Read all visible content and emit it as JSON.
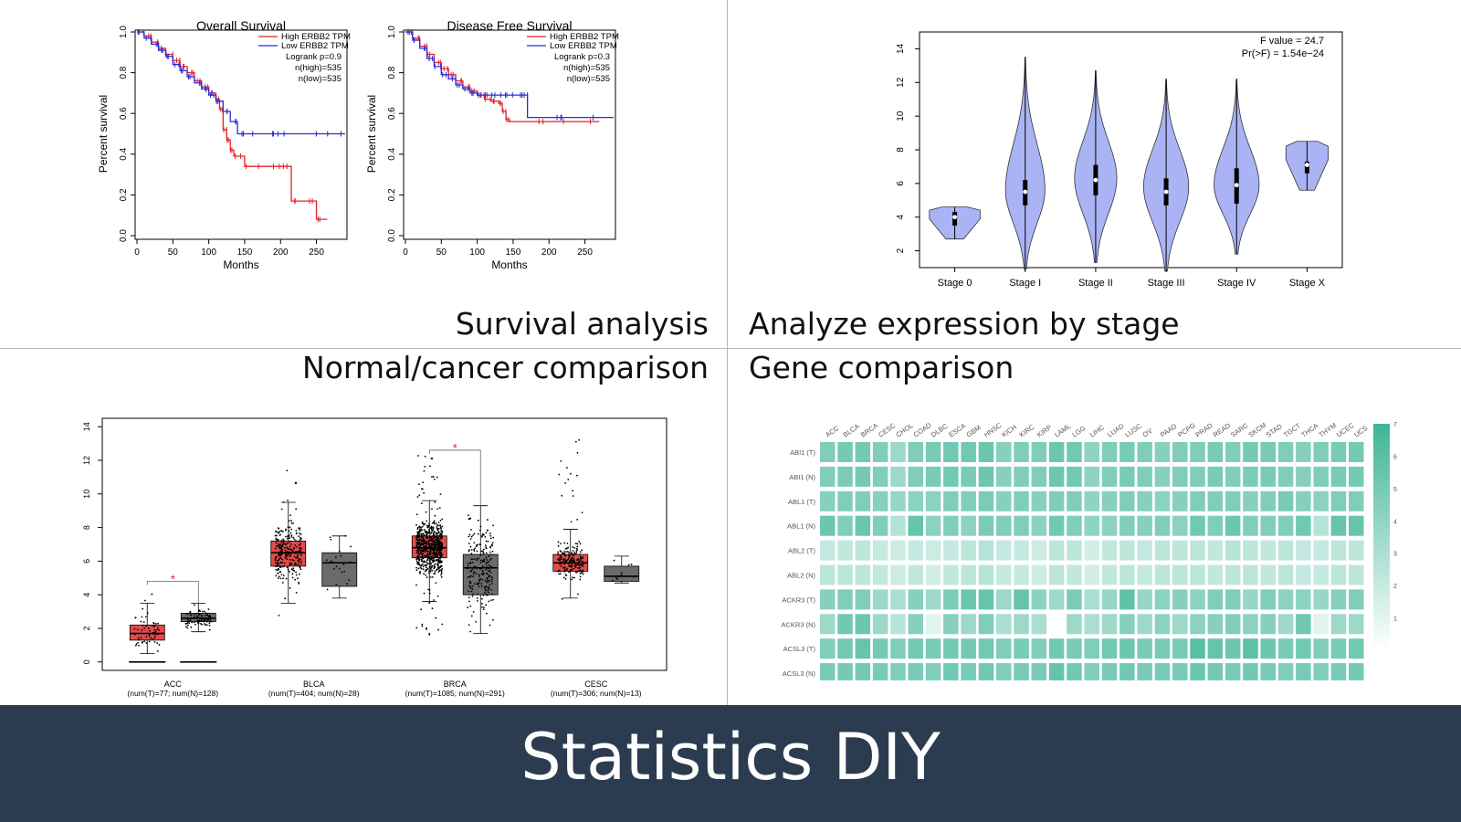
{
  "footer": {
    "title": "Statistics DIY"
  },
  "captions": {
    "survival": "Survival analysis",
    "stage": "Analyze expression by stage",
    "normal_cancer": "Normal/cancer comparison",
    "gene": "Gene comparison"
  },
  "colors": {
    "high": "#e8202a",
    "low": "#2b2bd8",
    "violin": "#aab4f4",
    "tumor": "#e24b4b",
    "normal": "#6b6b6b",
    "heat": "#3eb596",
    "footer": "#2c3c50"
  },
  "chart_data": [
    {
      "type": "line",
      "title": "Overall Survival",
      "xlabel": "Months",
      "ylabel": "Percent survival",
      "xlim": [
        0,
        290
      ],
      "ylim": [
        0,
        1
      ],
      "xticks": [
        "0",
        "50",
        "100",
        "150",
        "200",
        "250"
      ],
      "yticks": [
        "0.0",
        "0.2",
        "0.4",
        "0.6",
        "0.8",
        "1.0"
      ],
      "legend": [
        "High ERBB2 TPM",
        "Low ERBB2 TPM"
      ],
      "stats": [
        "Logrank p=0.9",
        "n(high)=535",
        "n(low)=535"
      ],
      "series": [
        {
          "name": "High ERBB2 TPM",
          "x": [
            0,
            10,
            20,
            30,
            40,
            50,
            60,
            70,
            80,
            90,
            100,
            110,
            115,
            120,
            125,
            130,
            135,
            150,
            175,
            200,
            215,
            230,
            250,
            265
          ],
          "values": [
            1.0,
            0.98,
            0.95,
            0.92,
            0.89,
            0.86,
            0.83,
            0.8,
            0.76,
            0.73,
            0.7,
            0.67,
            0.62,
            0.52,
            0.47,
            0.42,
            0.39,
            0.34,
            0.34,
            0.34,
            0.17,
            0.17,
            0.08,
            0.08
          ]
        },
        {
          "name": "Low ERBB2 TPM",
          "x": [
            0,
            10,
            20,
            30,
            40,
            50,
            60,
            70,
            80,
            90,
            100,
            110,
            120,
            130,
            140,
            150,
            200,
            290
          ],
          "values": [
            1.0,
            0.97,
            0.94,
            0.91,
            0.88,
            0.84,
            0.81,
            0.78,
            0.75,
            0.72,
            0.69,
            0.66,
            0.61,
            0.56,
            0.5,
            0.5,
            0.5,
            0.5
          ]
        }
      ]
    },
    {
      "type": "line",
      "title": "Disease Free Survival",
      "xlabel": "Months",
      "ylabel": "Percent survival",
      "xlim": [
        0,
        290
      ],
      "ylim": [
        0,
        1
      ],
      "xticks": [
        "0",
        "50",
        "100",
        "150",
        "200",
        "250"
      ],
      "yticks": [
        "0.0",
        "0.2",
        "0.4",
        "0.6",
        "0.8",
        "1.0"
      ],
      "legend": [
        "High ERBB2 TPM",
        "Low ERBB2 TPM"
      ],
      "stats": [
        "Logrank p=0.3",
        "n(high)=535",
        "n(low)=535"
      ],
      "series": [
        {
          "name": "High ERBB2 TPM",
          "x": [
            0,
            10,
            20,
            30,
            40,
            50,
            60,
            70,
            80,
            90,
            100,
            110,
            120,
            130,
            135,
            140,
            145,
            270
          ],
          "values": [
            1.0,
            0.97,
            0.93,
            0.89,
            0.85,
            0.82,
            0.79,
            0.76,
            0.73,
            0.71,
            0.69,
            0.67,
            0.66,
            0.65,
            0.61,
            0.57,
            0.56,
            0.56
          ]
        },
        {
          "name": "Low ERBB2 TPM",
          "x": [
            0,
            10,
            20,
            30,
            40,
            50,
            60,
            70,
            80,
            90,
            100,
            110,
            120,
            130,
            140,
            150,
            165,
            170,
            290
          ],
          "values": [
            1.0,
            0.96,
            0.92,
            0.87,
            0.83,
            0.79,
            0.77,
            0.74,
            0.72,
            0.7,
            0.69,
            0.69,
            0.69,
            0.69,
            0.69,
            0.69,
            0.69,
            0.58,
            0.58
          ]
        }
      ]
    },
    {
      "type": "violin",
      "categories": [
        "Stage 0",
        "Stage I",
        "Stage II",
        "Stage III",
        "Stage IV",
        "Stage X"
      ],
      "ylim": [
        1,
        15
      ],
      "yticks": [
        "2",
        "4",
        "6",
        "8",
        "10",
        "12",
        "14"
      ],
      "annotation": [
        "F value = 24.7",
        "Pr(>F) = 1.54e−24"
      ],
      "min": [
        2.7,
        0.9,
        1.3,
        0.8,
        1.8,
        5.6
      ],
      "max": [
        4.6,
        13.5,
        12.7,
        12.2,
        12.2,
        8.5
      ],
      "mode": [
        4.3,
        5.6,
        6.3,
        5.8,
        5.9,
        7.0
      ],
      "width": [
        0.36,
        0.28,
        0.3,
        0.32,
        0.32,
        0.3
      ],
      "median": [
        4.0,
        5.5,
        6.2,
        5.5,
        5.9,
        7.1
      ],
      "q1": [
        3.5,
        4.7,
        5.3,
        4.7,
        4.8,
        6.6
      ],
      "q3": [
        4.3,
        6.2,
        7.1,
        6.3,
        6.9,
        7.3
      ]
    },
    {
      "type": "box",
      "categories": [
        "ACC",
        "BLCA",
        "BRCA",
        "CESC"
      ],
      "sublabels": [
        "(num(T)=77; num(N)=128)",
        "(num(T)=404; num(N)=28)",
        "(num(T)=1085; num(N)=291)",
        "(num(T)=306; num(N)=13)"
      ],
      "ylim": [
        -0.5,
        14.5
      ],
      "yticks": [
        "0",
        "2",
        "4",
        "6",
        "8",
        "10",
        "12",
        "14"
      ],
      "significance_marker": "*",
      "significant": [
        true,
        false,
        true,
        false
      ],
      "tumor": {
        "q1": [
          1.3,
          5.7,
          6.2,
          5.4
        ],
        "median": [
          1.7,
          6.5,
          6.8,
          5.9
        ],
        "q3": [
          2.2,
          7.2,
          7.5,
          6.4
        ],
        "low": [
          0.5,
          3.5,
          3.6,
          3.8
        ],
        "high": [
          3.5,
          9.5,
          9.6,
          7.9
        ],
        "min": [
          0.4,
          2.7,
          1.6,
          3.2
        ],
        "max": [
          4.5,
          12.1,
          12.3,
          13.5
        ]
      },
      "normal": {
        "q1": [
          2.4,
          4.5,
          4.0,
          4.8
        ],
        "median": [
          2.6,
          5.9,
          5.6,
          5.1
        ],
        "q3": [
          2.9,
          6.5,
          6.4,
          5.7
        ],
        "low": [
          1.8,
          3.8,
          1.7,
          4.7
        ],
        "high": [
          3.5,
          7.5,
          9.3,
          6.3
        ],
        "min": [
          1.6,
          3.8,
          1.7,
          4.7
        ],
        "max": [
          3.6,
          7.5,
          9.3,
          6.3
        ]
      }
    },
    {
      "type": "heatmap",
      "x": [
        "ACC",
        "BLCA",
        "BRCA",
        "CESC",
        "CHOL",
        "COAD",
        "DLBC",
        "ESCA",
        "GBM",
        "HNSC",
        "KICH",
        "KIRC",
        "KIRP",
        "LAML",
        "LGG",
        "LIHC",
        "LUAD",
        "LUSC",
        "OV",
        "PAAD",
        "PCPG",
        "PRAD",
        "READ",
        "SARC",
        "SKCM",
        "STAD",
        "TGCT",
        "THCA",
        "THYM",
        "UCEC",
        "UCS"
      ],
      "y": [
        "ABI1 (T)",
        "ABI1 (N)",
        "ABL1 (T)",
        "ABL1 (N)",
        "ABL2 (T)",
        "ABL2 (N)",
        "ACKR3 (T)",
        "ACKR3 (N)",
        "ACSL3 (T)",
        "ACSL3 (N)"
      ],
      "scale_ticks": [
        "1",
        "2",
        "3",
        "4",
        "5",
        "6",
        "7"
      ],
      "zlim": [
        0,
        7
      ],
      "values": [
        [
          4.6,
          5.0,
          5.0,
          4.6,
          3.6,
          4.6,
          4.9,
          5.1,
          5.1,
          5.3,
          4.4,
          4.6,
          4.6,
          5.3,
          5.1,
          4.1,
          4.6,
          4.9,
          4.6,
          4.4,
          4.6,
          4.6,
          4.9,
          4.6,
          5.0,
          4.9,
          4.6,
          4.4,
          4.6,
          4.9,
          5.0
        ],
        [
          4.6,
          4.8,
          5.0,
          4.6,
          3.6,
          4.6,
          4.9,
          5.1,
          4.9,
          5.3,
          4.4,
          4.6,
          4.6,
          5.3,
          5.1,
          4.1,
          4.6,
          4.9,
          4.6,
          4.4,
          4.6,
          4.6,
          4.9,
          4.6,
          4.8,
          4.9,
          4.6,
          4.4,
          4.6,
          4.9,
          5.0
        ],
        [
          4.4,
          4.6,
          4.6,
          4.4,
          3.8,
          4.2,
          4.2,
          4.6,
          4.6,
          4.8,
          4.4,
          4.6,
          4.4,
          4.6,
          4.6,
          4.1,
          4.4,
          4.6,
          4.4,
          4.2,
          4.4,
          4.6,
          4.6,
          4.6,
          4.4,
          4.6,
          4.9,
          4.4,
          4.2,
          4.6,
          4.6
        ],
        [
          5.3,
          4.6,
          5.4,
          4.6,
          2.7,
          5.6,
          4.2,
          4.6,
          4.2,
          4.8,
          4.6,
          4.6,
          4.2,
          5.1,
          4.6,
          4.1,
          4.2,
          4.6,
          4.4,
          4.6,
          4.2,
          5.1,
          4.6,
          5.3,
          4.6,
          4.6,
          4.6,
          5.1,
          2.6,
          5.6,
          5.5
        ],
        [
          2.1,
          2.2,
          2.4,
          2.1,
          1.8,
          2.1,
          1.9,
          2.1,
          2.4,
          2.6,
          2.1,
          2.1,
          1.8,
          2.4,
          2.4,
          1.6,
          2.2,
          2.4,
          2.1,
          2.4,
          2.4,
          2.4,
          2.2,
          2.6,
          2.4,
          2.2,
          2.4,
          2.1,
          2.1,
          2.4,
          2.4
        ],
        [
          2.4,
          2.4,
          2.4,
          2.2,
          1.8,
          2.2,
          1.6,
          2.2,
          2.4,
          2.6,
          2.1,
          2.1,
          1.8,
          2.4,
          2.2,
          1.6,
          2.2,
          2.4,
          2.1,
          2.4,
          2.4,
          2.4,
          2.2,
          2.4,
          2.4,
          2.2,
          2.4,
          2.1,
          2.1,
          2.4,
          2.4
        ],
        [
          4.4,
          4.6,
          4.6,
          3.6,
          3.1,
          4.4,
          3.6,
          4.8,
          5.4,
          5.6,
          3.6,
          5.6,
          4.2,
          3.6,
          4.8,
          3.1,
          3.8,
          5.8,
          3.8,
          4.2,
          4.4,
          4.2,
          4.6,
          4.6,
          3.8,
          4.6,
          4.2,
          4.2,
          3.8,
          4.4,
          4.6
        ],
        [
          3.6,
          5.2,
          5.3,
          3.6,
          2.6,
          4.4,
          1.1,
          4.4,
          3.6,
          4.6,
          3.1,
          3.6,
          3.1,
          0.0,
          3.6,
          3.1,
          3.6,
          4.4,
          3.6,
          4.2,
          3.6,
          4.2,
          4.4,
          4.6,
          4.2,
          4.4,
          3.6,
          5.2,
          1.1,
          3.6,
          3.6
        ],
        [
          4.6,
          5.1,
          5.6,
          5.0,
          4.6,
          5.1,
          4.9,
          5.1,
          5.1,
          5.1,
          4.6,
          4.9,
          4.6,
          5.1,
          4.9,
          4.6,
          5.1,
          5.3,
          4.9,
          4.9,
          4.9,
          6.1,
          5.6,
          5.3,
          5.9,
          5.3,
          4.9,
          5.1,
          4.6,
          4.9,
          5.1
        ],
        [
          4.9,
          5.0,
          5.0,
          4.9,
          4.6,
          4.9,
          4.6,
          5.1,
          4.9,
          5.1,
          4.6,
          4.9,
          4.9,
          5.6,
          5.1,
          4.6,
          4.9,
          5.1,
          4.9,
          4.9,
          4.9,
          5.3,
          5.0,
          4.9,
          5.1,
          4.9,
          4.6,
          4.9,
          4.6,
          4.9,
          5.0
        ]
      ]
    }
  ]
}
